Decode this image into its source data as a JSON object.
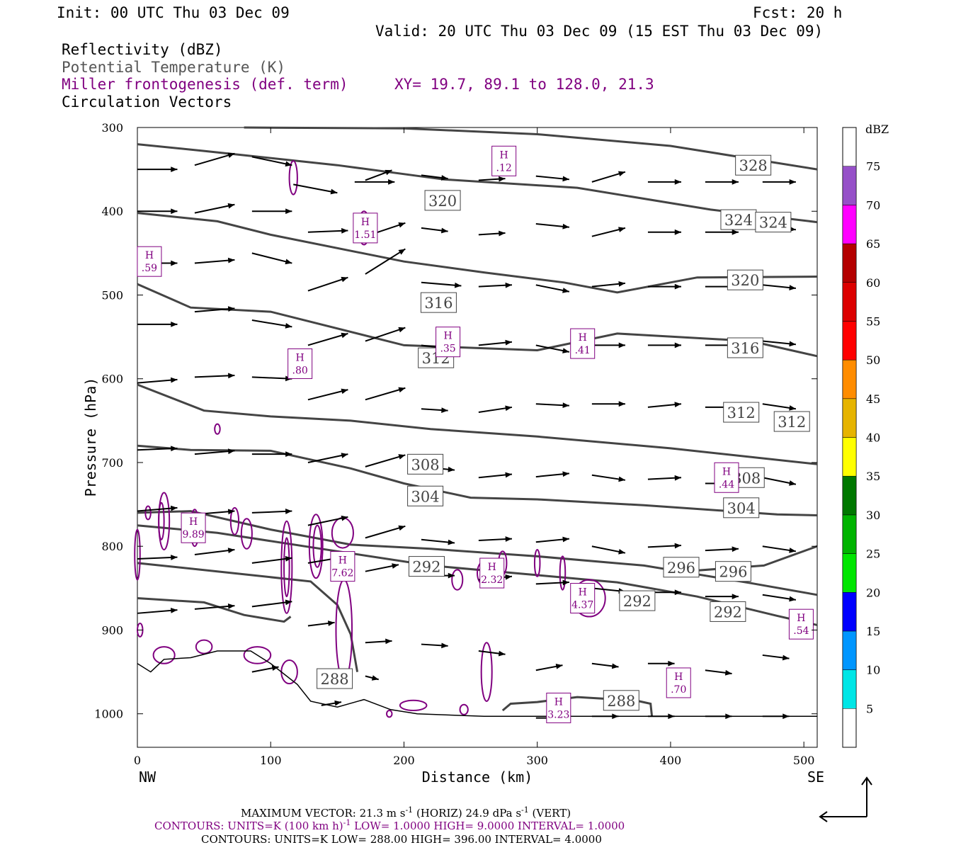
{
  "header": {
    "init": "Init: 00 UTC Thu 03 Dec 09",
    "fcst": "Fcst:   20 h",
    "valid": "Valid: 20 UTC Thu 03 Dec 09 (15 EST Thu 03 Dec 09)",
    "line1": "Reflectivity (dBZ)",
    "line2": "Potential Temperature (K)",
    "line3": "Miller frontogenesis (def. term)",
    "xy": "XY=  19.7, 89.1 to 128.0, 21.3",
    "line4": "Circulation Vectors"
  },
  "colors": {
    "theta": "#444444",
    "fronto": "#800080",
    "vectors": "#000000"
  },
  "chart_data": {
    "type": "cross-section",
    "xlabel": "Distance (km)",
    "ylabel": "Pressure (hPa)",
    "xlim": [
      0,
      510
    ],
    "ylim": [
      1040,
      300
    ],
    "xticks": [
      "0",
      "100",
      "200",
      "300",
      "400",
      "500"
    ],
    "yticks": [
      "300",
      "400",
      "500",
      "600",
      "700",
      "800",
      "900",
      "1000"
    ],
    "left_end": "NW",
    "right_end": "SE",
    "theta_labels": [
      {
        "text": "328",
        "x": 462,
        "p": 345
      },
      {
        "text": "320",
        "x": 229,
        "p": 387
      },
      {
        "text": "324",
        "x": 451,
        "p": 410
      },
      {
        "text": "324",
        "x": 477,
        "p": 413
      },
      {
        "text": "320",
        "x": 456,
        "p": 482
      },
      {
        "text": "316",
        "x": 226,
        "p": 509
      },
      {
        "text": "316",
        "x": 456,
        "p": 563
      },
      {
        "text": "312",
        "x": 224,
        "p": 575
      },
      {
        "text": "312",
        "x": 453,
        "p": 640
      },
      {
        "text": "312",
        "x": 491,
        "p": 651
      },
      {
        "text": "308",
        "x": 216,
        "p": 702
      },
      {
        "text": "308",
        "x": 457,
        "p": 718
      },
      {
        "text": "304",
        "x": 216,
        "p": 740
      },
      {
        "text": "304",
        "x": 453,
        "p": 754
      },
      {
        "text": "292",
        "x": 217,
        "p": 824
      },
      {
        "text": "296",
        "x": 408,
        "p": 825
      },
      {
        "text": "296",
        "x": 447,
        "p": 830
      },
      {
        "text": "292",
        "x": 375,
        "p": 865
      },
      {
        "text": "292",
        "x": 443,
        "p": 878
      },
      {
        "text": "288",
        "x": 148,
        "p": 958
      },
      {
        "text": "288",
        "x": 363,
        "p": 984
      }
    ],
    "fronto_maxima": [
      {
        "text": ".12",
        "x": 275,
        "p": 340
      },
      {
        "text": "1.51",
        "x": 171,
        "p": 420
      },
      {
        "text": ".59",
        "x": 9,
        "p": 460
      },
      {
        "text": ".35",
        "x": 233,
        "p": 556
      },
      {
        "text": ".41",
        "x": 334,
        "p": 558
      },
      {
        "text": ".80",
        "x": 122,
        "p": 582
      },
      {
        "text": ".44",
        "x": 442,
        "p": 718
      },
      {
        "text": "9.89",
        "x": 42,
        "p": 778
      },
      {
        "text": "7.62",
        "x": 154,
        "p": 824
      },
      {
        "text": "2.32",
        "x": 266,
        "p": 832
      },
      {
        "text": "4.37",
        "x": 334,
        "p": 862
      },
      {
        "text": ".54",
        "x": 498,
        "p": 893
      },
      {
        "text": ".70",
        "x": 406,
        "p": 963
      },
      {
        "text": "3.23",
        "x": 316,
        "p": 993
      }
    ],
    "colorbar": {
      "label": "dBZ",
      "levels": [
        "5",
        "10",
        "15",
        "20",
        "25",
        "30",
        "35",
        "40",
        "45",
        "50",
        "55",
        "60",
        "65",
        "70",
        "75"
      ],
      "colors": [
        "#00e6e6",
        "#0096ff",
        "#0000ff",
        "#00e600",
        "#00b400",
        "#007800",
        "#ffff00",
        "#e6b400",
        "#ff8c00",
        "#ff0000",
        "#dc0000",
        "#b40000",
        "#ff00ff",
        "#9650c8",
        "#ffffff"
      ]
    }
  },
  "footer": {
    "max_vector": "MAXIMUM VECTOR:  21.3 m s",
    "max_vector_b": "-1",
    "max_vector_c": " (HORIZ)          24.9 dPa s",
    "max_vector_d": "-1",
    "max_vector_e": " (VERT)",
    "contours1_a": "CONTOURS:  UNITS=K (100 km h)",
    "contours1_b": "-1",
    "contours1_c": "  LOW=   1.0000         HIGH=   9.0000        INTERVAL=     1.0000",
    "contours2": "CONTOURS:  UNITS=K  LOW=   288.00         HIGH=   396.00         INTERVAL=     4.0000"
  }
}
